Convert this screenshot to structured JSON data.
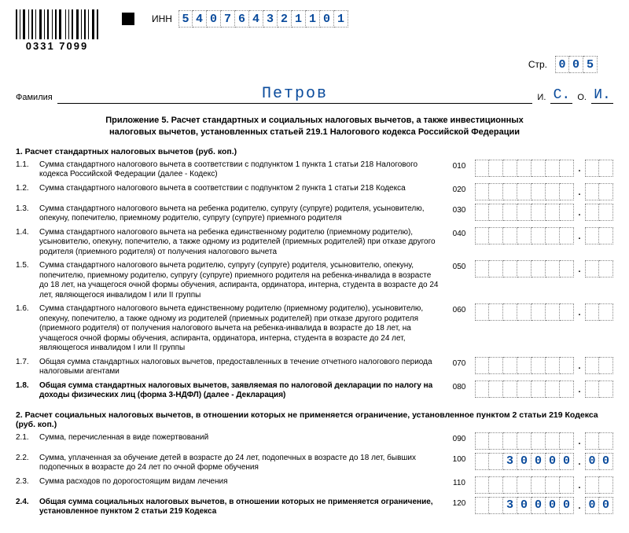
{
  "barcode_number": "0331 7099",
  "inn_label": "ИНН",
  "inn": [
    "5",
    "4",
    "0",
    "7",
    "6",
    "4",
    "3",
    "2",
    "1",
    "1",
    "0",
    "1"
  ],
  "page_label": "Стр.",
  "page": [
    "0",
    "0",
    "5"
  ],
  "surname_label": "Фамилия",
  "surname": "Петров",
  "i_label": "И.",
  "o_label": "О.",
  "initial_i": "С.",
  "initial_o": "И.",
  "title_line1": "Приложение 5. Расчет стандартных и социальных налоговых вычетов, а также инвестиционных",
  "title_line2": "налоговых вычетов, установленных статьей 219.1 Налогового кодекса Российской Федерации",
  "section1": "1. Расчет стандартных налоговых вычетов (руб. коп.)",
  "section2": "2. Расчет социальных налоговых вычетов, в отношении которых не применяется ограничение, установленное пунктом 2 статьи 219 Кодекса (руб. коп.)",
  "lines1": [
    {
      "n": "1.1.",
      "t": "Сумма стандартного налогового вычета в соответствии с подпунктом 1 пункта 1 статьи 218 Налогового кодекса Российской Федерации (далее - Кодекс)",
      "c": "010",
      "int": [
        "",
        "",
        "",
        "",
        "",
        "",
        ""
      ],
      "dec": [
        "",
        ""
      ]
    },
    {
      "n": "1.2.",
      "t": "Сумма стандартного налогового вычета в соответствии с подпунктом 2 пункта 1 статьи 218 Кодекса",
      "c": "020",
      "int": [
        "",
        "",
        "",
        "",
        "",
        "",
        ""
      ],
      "dec": [
        "",
        ""
      ]
    },
    {
      "n": "1.3.",
      "t": "Сумма стандартного налогового вычета на ребенка родителю, супругу (супруге) родителя, усыновителю, опекуну, попечителю, приемному родителю, супругу (супруге) приемного родителя",
      "c": "030",
      "int": [
        "",
        "",
        "",
        "",
        "",
        "",
        ""
      ],
      "dec": [
        "",
        ""
      ]
    },
    {
      "n": "1.4.",
      "t": "Сумма стандартного налогового вычета на ребенка единственному родителю (приемному родителю), усыновителю, опекуну, попечителю, а также одному из родителей (приемных родителей) при отказе другого родителя (приемного родителя) от получения налогового вычета",
      "c": "040",
      "int": [
        "",
        "",
        "",
        "",
        "",
        "",
        ""
      ],
      "dec": [
        "",
        ""
      ]
    },
    {
      "n": "1.5.",
      "t": "Сумма стандартного налогового вычета родителю, супругу (супруге) родителя, усыновителю, опекуну, попечителю, приемному родителю, супругу (супруге) приемного родителя на ребенка-инвалида в возрасте до 18 лет, на учащегося очной формы обучения, аспиранта, ординатора, интерна, студента в возрасте до 24 лет, являющегося инвалидом I или II группы",
      "c": "050",
      "int": [
        "",
        "",
        "",
        "",
        "",
        "",
        ""
      ],
      "dec": [
        "",
        ""
      ]
    },
    {
      "n": "1.6.",
      "t": "Сумма стандартного налогового вычета единственному родителю (приемному родителю), усыновителю, опекуну, попечителю, а также одному из родителей (приемных родителей) при отказе другого родителя (приемного родителя) от получения налогового вычета на ребенка-инвалида в возрасте до 18 лет, на учащегося очной формы обучения, аспиранта, ординатора, интерна, студента в возрасте до 24 лет, являющегося инвалидом I или II группы",
      "c": "060",
      "int": [
        "",
        "",
        "",
        "",
        "",
        "",
        ""
      ],
      "dec": [
        "",
        ""
      ]
    },
    {
      "n": "1.7.",
      "t": "Общая сумма стандартных налоговых вычетов, предоставленных в течение отчетного налогового периода налоговыми агентами",
      "c": "070",
      "int": [
        "",
        "",
        "",
        "",
        "",
        "",
        ""
      ],
      "dec": [
        "",
        ""
      ]
    },
    {
      "n": "1.8.",
      "t": "Общая сумма стандартных налоговых вычетов, заявляемая по налоговой декларации по налогу на доходы физических лиц (форма 3-НДФЛ) (далее - Декларация)",
      "c": "080",
      "int": [
        "",
        "",
        "",
        "",
        "",
        "",
        ""
      ],
      "dec": [
        "",
        ""
      ],
      "bold": true
    }
  ],
  "lines2": [
    {
      "n": "2.1.",
      "t": "Сумма, перечисленная в виде пожертвований",
      "c": "090",
      "int": [
        "",
        "",
        "",
        "",
        "",
        "",
        ""
      ],
      "dec": [
        "",
        ""
      ]
    },
    {
      "n": "2.2.",
      "t": "Сумма, уплаченная за обучение детей в возрасте до 24 лет, подопечных в возрасте до 18 лет, бывших подопечных в возрасте до 24 лет по очной форме обучения",
      "c": "100",
      "int": [
        "",
        "",
        "3",
        "0",
        "0",
        "0",
        "0"
      ],
      "dec": [
        "0",
        "0"
      ]
    },
    {
      "n": "2.3.",
      "t": "Сумма расходов по дорогостоящим видам лечения",
      "c": "110",
      "int": [
        "",
        "",
        "",
        "",
        "",
        "",
        ""
      ],
      "dec": [
        "",
        ""
      ]
    },
    {
      "n": "2.4.",
      "t": "Общая сумма социальных налоговых вычетов, в отношении которых не применяется ограничение, установленное пунктом 2 статьи 219 Кодекса",
      "c": "120",
      "int": [
        "",
        "",
        "3",
        "0",
        "0",
        "0",
        "0"
      ],
      "dec": [
        "0",
        "0"
      ],
      "bold": true
    }
  ],
  "colors": {
    "value": "#0a4b9c",
    "border": "#888888"
  },
  "int_digits": 7,
  "dec_digits": 2
}
